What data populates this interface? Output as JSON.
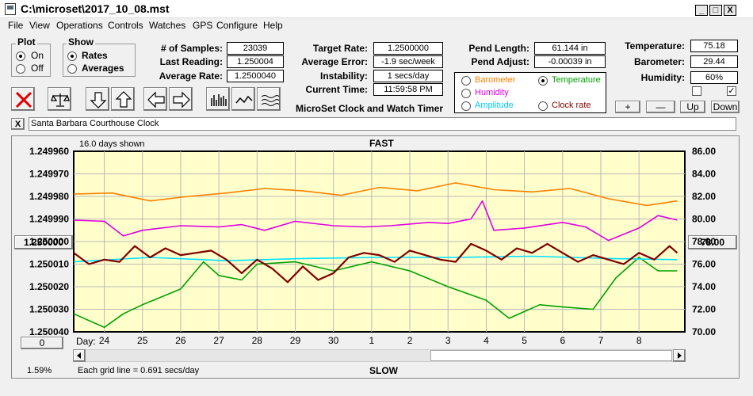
{
  "window": {
    "title": "C:\\microset\\2017_10_08.mst",
    "buttons": [
      "_",
      "□",
      "X"
    ]
  },
  "menu": [
    "File",
    "View",
    "Operations",
    "Controls",
    "Watches",
    "GPS",
    "Configure",
    "Help"
  ],
  "plot_group": {
    "label": "Plot",
    "options": [
      {
        "label": "On",
        "selected": true
      },
      {
        "label": "Off",
        "selected": false
      }
    ]
  },
  "show_group": {
    "label": "Show",
    "options": [
      {
        "label": "Rates",
        "selected": true
      },
      {
        "label": "Averages",
        "selected": false
      }
    ]
  },
  "stats": [
    {
      "label": "# of Samples:",
      "value": "23039"
    },
    {
      "label": "Last Reading:",
      "value": "1.250004"
    },
    {
      "label": "Average Rate:",
      "value": "1.2500040"
    }
  ],
  "rates": [
    {
      "label": "Target Rate:",
      "value": "1.2500000"
    },
    {
      "label": "Average Error:",
      "value": "-1.9 sec/week"
    },
    {
      "label": "Instability:",
      "value": "1 secs/day"
    },
    {
      "label": "Current Time:",
      "value": "11:59:58 PM"
    }
  ],
  "pend": [
    {
      "label": "Pend Length:",
      "value": "61.144 in"
    },
    {
      "label": "Pend Adjust:",
      "value": "-0.00039 in"
    }
  ],
  "sensors": [
    {
      "label": "Temperature:",
      "value": "75.18"
    },
    {
      "label": "Barometer:",
      "value": "29.44"
    },
    {
      "label": "Humidity:",
      "value": "60%"
    }
  ],
  "sensor_checks": [
    {
      "checked": false,
      "mark": ""
    },
    {
      "checked": true,
      "mark": "✓"
    }
  ],
  "sensor_buttons": [
    "+",
    "—",
    "Up",
    "Down"
  ],
  "app_caption": "MicroSet Clock and Watch Timer",
  "aux_options": [
    {
      "label": "Barometer",
      "color": "#ff8000",
      "selected": false
    },
    {
      "label": "Temperature",
      "color": "#00a000",
      "selected": true
    },
    {
      "label": "Humidity",
      "color": "#e000e0",
      "selected": false
    },
    {
      "label": "Amplitude",
      "color": "#00c8ff",
      "selected": false
    },
    {
      "label": "Clock rate",
      "color": "#800000",
      "selected": false
    }
  ],
  "toolbar_icons": [
    "close-x-icon",
    "balance-scale-icon",
    "arrow-down-icon",
    "arrow-up-icon",
    "arrow-left-icon",
    "arrow-right-icon",
    "bar-graph-icon",
    "line-graph-icon",
    "wave-graph-icon"
  ],
  "clock_name": {
    "close_label": "X",
    "value": "Santa Barbara Courthouse Clock"
  },
  "plot": {
    "days_shown": "16.0 days shown",
    "top_label": "FAST",
    "bottom_label": "SLOW",
    "grid_note": "Each grid line = 0.691 secs/day",
    "percent": "1.59%",
    "left_button": "1.250000",
    "right_button": "78.00",
    "bottom_left_button": "0",
    "day_prefix": "Day:"
  },
  "chart_data": {
    "type": "line",
    "background": "#ffffcc",
    "grid": true,
    "y_left": {
      "ticks": [
        "1.249960",
        "1.249970",
        "1.249980",
        "1.249990",
        "1.250000",
        "1.250010",
        "1.250020",
        "1.250030",
        "1.250040"
      ],
      "range": [
        1.24996,
        1.25004
      ],
      "inverted": true
    },
    "y_right": {
      "ticks": [
        "86.00",
        "84.00",
        "82.00",
        "80.00",
        "78.00",
        "76.00",
        "74.00",
        "72.00",
        "70.00"
      ],
      "range": [
        70,
        86
      ]
    },
    "x": {
      "tick_labels": [
        "24",
        "25",
        "26",
        "27",
        "28",
        "29",
        "30",
        "1",
        "2",
        "3",
        "4",
        "5",
        "6",
        "7",
        "8"
      ],
      "range": [
        23.2,
        39.2
      ]
    },
    "series": [
      {
        "key": "barometer",
        "color": "#ff8000",
        "axis": "right",
        "x": [
          23.2,
          24.2,
          25.2,
          26.2,
          27.2,
          28.2,
          29.2,
          30.2,
          31.2,
          32.2,
          33.2,
          34.2,
          35.2,
          36.2,
          37.2,
          38.2,
          39.0
        ],
        "y": [
          82.2,
          82.3,
          81.6,
          82.0,
          82.3,
          82.7,
          82.5,
          82.1,
          82.8,
          82.5,
          83.2,
          82.6,
          82.4,
          82.7,
          81.8,
          81.2,
          81.6
        ]
      },
      {
        "key": "humidity",
        "color": "#e000e0",
        "axis": "right",
        "x": [
          23.2,
          24.0,
          24.5,
          25.0,
          26.0,
          27.0,
          27.6,
          28.2,
          29.0,
          30.0,
          30.8,
          31.5,
          32.5,
          33.0,
          33.6,
          33.9,
          34.2,
          35.0,
          36.0,
          36.6,
          37.2,
          38.0,
          38.5,
          39.0
        ],
        "y": [
          79.9,
          79.8,
          78.5,
          79.0,
          79.4,
          79.3,
          79.5,
          79.0,
          79.8,
          79.4,
          79.3,
          79.4,
          79.7,
          79.6,
          80.0,
          81.6,
          79.0,
          79.2,
          79.7,
          79.3,
          78.1,
          79.2,
          80.3,
          79.9
        ]
      },
      {
        "key": "temperature",
        "color": "#00a000",
        "axis": "right",
        "x": [
          23.2,
          24.0,
          24.5,
          25.0,
          26.0,
          26.6,
          27.0,
          27.6,
          28.0,
          29.0,
          30.0,
          31.0,
          32.0,
          33.0,
          34.0,
          34.6,
          35.4,
          36.0,
          36.8,
          37.4,
          38.0,
          38.5,
          39.0
        ],
        "y": [
          71.6,
          70.4,
          71.6,
          72.4,
          73.8,
          76.2,
          75.0,
          74.6,
          76.0,
          76.2,
          75.4,
          76.2,
          75.4,
          74.0,
          72.8,
          71.2,
          72.4,
          72.2,
          72.0,
          74.8,
          76.6,
          75.4,
          75.4
        ]
      },
      {
        "key": "amplitude",
        "color": "#00e0ff",
        "axis": "right",
        "x": [
          23.2,
          25.2,
          27.2,
          29.2,
          31.2,
          33.2,
          35.2,
          37.2,
          39.0
        ],
        "y": [
          76.2,
          76.6,
          76.3,
          76.5,
          76.6,
          76.6,
          76.7,
          76.5,
          76.4
        ]
      },
      {
        "key": "clock_rate",
        "color": "#800000",
        "axis": "right",
        "x": [
          23.2,
          23.6,
          24.0,
          24.4,
          24.8,
          25.2,
          25.6,
          26.0,
          26.4,
          26.8,
          27.2,
          27.6,
          28.0,
          28.4,
          28.8,
          29.2,
          29.6,
          30.0,
          30.4,
          30.8,
          31.2,
          31.6,
          32.0,
          32.4,
          32.8,
          33.2,
          33.6,
          34.0,
          34.4,
          34.8,
          35.2,
          35.6,
          36.0,
          36.4,
          36.8,
          37.2,
          37.6,
          38.0,
          38.4,
          38.8,
          39.0
        ],
        "y": [
          77.0,
          76.0,
          76.4,
          76.2,
          77.6,
          76.6,
          77.4,
          76.8,
          77.0,
          77.2,
          76.4,
          75.2,
          76.4,
          75.6,
          74.4,
          75.8,
          74.6,
          75.2,
          76.6,
          77.0,
          76.8,
          76.2,
          77.2,
          76.8,
          76.4,
          76.2,
          77.8,
          77.2,
          76.4,
          77.4,
          77.0,
          77.8,
          77.0,
          76.2,
          76.8,
          76.4,
          76.0,
          77.0,
          76.4,
          77.6,
          77.0
        ]
      }
    ]
  }
}
